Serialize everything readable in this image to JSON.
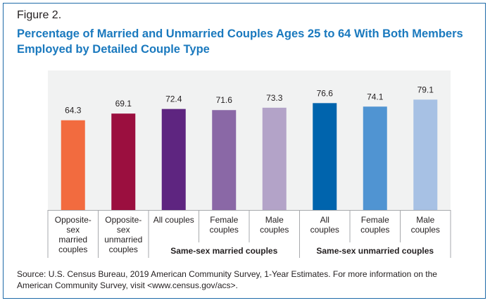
{
  "figure_label": "Figure 2.",
  "title": "Percentage of Married and Unmarried Couples Ages 25 to 64 With Both Members Employed by Detailed Couple Type",
  "chart_data": {
    "type": "bar",
    "categories": [
      "Opposite-sex married couples",
      "Opposite-sex unmarried couples",
      "All couples",
      "Female couples",
      "Male couples",
      "All couples",
      "Female couples",
      "Male couples"
    ],
    "category_lines": [
      [
        "Opposite-",
        "sex",
        "married",
        "couples"
      ],
      [
        "Opposite-",
        "sex",
        "unmarried",
        "couples"
      ],
      [
        "All couples"
      ],
      [
        "Female",
        "couples"
      ],
      [
        "Male",
        "couples"
      ],
      [
        "All",
        "couples"
      ],
      [
        "Female",
        "couples"
      ],
      [
        "Male",
        "couples"
      ]
    ],
    "values": [
      64.3,
      69.1,
      72.4,
      71.6,
      73.3,
      76.6,
      74.1,
      79.1
    ],
    "value_labels": [
      "64.3",
      "69.1",
      "72.4",
      "71.6",
      "73.3",
      "76.6",
      "74.1",
      "79.1"
    ],
    "colors": [
      "#f26b3f",
      "#9b0f3f",
      "#5e2580",
      "#8a68a6",
      "#b3a3c8",
      "#0064ad",
      "#5094d2",
      "#a7c1e4"
    ],
    "groups": [
      {
        "label": "Same-sex married couples",
        "start": 2,
        "end": 4
      },
      {
        "label": "Same-sex unmarried couples",
        "start": 5,
        "end": 7
      }
    ],
    "ylim": [
      0,
      100
    ],
    "grid": false,
    "xlabel": "",
    "ylabel": ""
  },
  "source": "Source: U.S. Census Bureau, 2019 American Community Survey, 1-Year Estimates. For more information on the American Community Survey, visit <www.census.gov/acs>."
}
